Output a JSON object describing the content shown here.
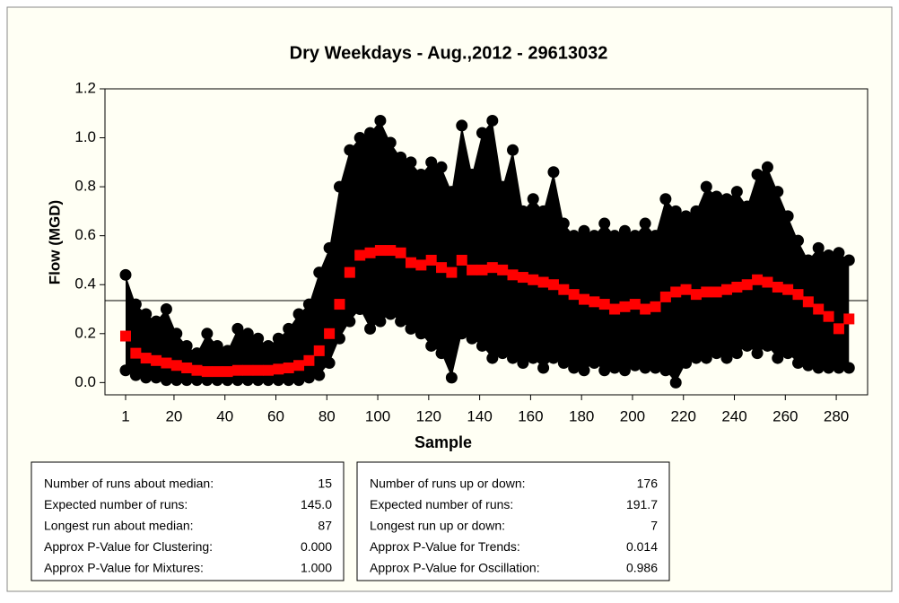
{
  "chart_data": {
    "type": "scatter",
    "title": "Dry Weekdays - Aug.,2012 - 29613032",
    "x_label": "Sample",
    "y_label": "Flow (MGD)",
    "x": [
      1,
      5,
      9,
      13,
      17,
      21,
      25,
      29,
      33,
      37,
      41,
      45,
      49,
      53,
      57,
      61,
      65,
      69,
      73,
      77,
      81,
      85,
      89,
      93,
      97,
      101,
      105,
      109,
      113,
      117,
      121,
      125,
      129,
      133,
      137,
      141,
      145,
      149,
      153,
      157,
      161,
      165,
      169,
      173,
      177,
      181,
      185,
      189,
      193,
      197,
      201,
      205,
      209,
      213,
      217,
      221,
      225,
      229,
      233,
      237,
      241,
      245,
      249,
      253,
      257,
      261,
      265,
      269,
      273,
      277,
      281,
      285
    ],
    "series": [
      {
        "color": "#000000",
        "values": [
          0.44,
          0.32,
          0.28,
          0.25,
          0.3,
          0.2,
          0.15,
          0.12,
          0.2,
          0.15,
          0.13,
          0.22,
          0.2,
          0.18,
          0.15,
          0.18,
          0.22,
          0.28,
          0.32,
          0.45,
          0.55,
          0.8,
          0.95,
          1.0,
          1.02,
          1.07,
          0.98,
          0.92,
          0.9,
          0.85,
          0.9,
          0.88,
          0.78,
          1.05,
          0.85,
          1.02,
          1.07,
          0.8,
          0.95,
          0.7,
          0.75,
          0.7,
          0.86,
          0.65,
          0.6,
          0.62,
          0.6,
          0.65,
          0.6,
          0.62,
          0.6,
          0.65,
          0.6,
          0.75,
          0.7,
          0.68,
          0.7,
          0.8,
          0.76,
          0.75,
          0.78,
          0.72,
          0.85,
          0.88,
          0.78,
          0.68,
          0.58,
          0.5,
          0.55,
          0.52,
          0.53,
          0.5
        ]
      },
      {
        "color": "#000000",
        "values": [
          0.05,
          0.03,
          0.02,
          0.02,
          0.01,
          0.01,
          0.01,
          0.01,
          0.01,
          0.01,
          0.01,
          0.01,
          0.01,
          0.01,
          0.01,
          0.01,
          0.01,
          0.01,
          0.02,
          0.03,
          0.08,
          0.18,
          0.25,
          0.3,
          0.22,
          0.25,
          0.28,
          0.25,
          0.22,
          0.2,
          0.15,
          0.12,
          0.02,
          0.2,
          0.18,
          0.15,
          0.1,
          0.12,
          0.1,
          0.08,
          0.1,
          0.06,
          0.1,
          0.08,
          0.06,
          0.05,
          0.08,
          0.05,
          0.06,
          0.05,
          0.07,
          0.06,
          0.06,
          0.05,
          0.0,
          0.08,
          0.1,
          0.1,
          0.12,
          0.1,
          0.12,
          0.15,
          0.12,
          0.15,
          0.1,
          0.12,
          0.08,
          0.07,
          0.06,
          0.06,
          0.06,
          0.06
        ]
      },
      {
        "color": "#ff0000",
        "values": [
          0.19,
          0.12,
          0.1,
          0.09,
          0.08,
          0.07,
          0.06,
          0.05,
          0.045,
          0.045,
          0.045,
          0.05,
          0.05,
          0.05,
          0.05,
          0.055,
          0.06,
          0.07,
          0.09,
          0.13,
          0.2,
          0.32,
          0.45,
          0.52,
          0.53,
          0.54,
          0.54,
          0.53,
          0.49,
          0.48,
          0.5,
          0.47,
          0.45,
          0.5,
          0.46,
          0.46,
          0.47,
          0.46,
          0.44,
          0.43,
          0.42,
          0.41,
          0.4,
          0.38,
          0.36,
          0.34,
          0.33,
          0.32,
          0.3,
          0.31,
          0.32,
          0.3,
          0.31,
          0.35,
          0.37,
          0.38,
          0.36,
          0.37,
          0.37,
          0.38,
          0.39,
          0.4,
          0.42,
          0.41,
          0.39,
          0.38,
          0.36,
          0.33,
          0.3,
          0.27,
          0.22,
          0.26
        ]
      }
    ],
    "median_line": 0.335,
    "xlim": [
      -7.1,
      292.3
    ],
    "xticks": [
      1,
      20,
      40,
      60,
      80,
      100,
      120,
      140,
      160,
      180,
      200,
      220,
      240,
      260,
      280
    ],
    "ylim": [
      -0.05,
      1.2
    ],
    "yticks": [
      {
        "value": 0,
        "label": "0.0"
      },
      0.2,
      0.4,
      0.6,
      0.8,
      {
        "value": 1,
        "label": "1.0"
      },
      1.2
    ],
    "stats_tables": [
      {
        "rows": [
          [
            "Number of runs about median:",
            "15"
          ],
          [
            "Expected number of runs:",
            "145.0"
          ],
          [
            "Longest run about median:",
            "87"
          ],
          [
            "Approx P-Value for Clustering:",
            "0.000"
          ],
          [
            "Approx P-Value for Mixtures:",
            "1.000"
          ]
        ]
      },
      {
        "rows": [
          [
            "Number of runs up or down:",
            "176"
          ],
          [
            "Expected number of runs:",
            "191.7"
          ],
          [
            "Longest run up or down:",
            "7"
          ],
          [
            "Approx P-Value for Trends:",
            "0.014"
          ],
          [
            "Approx P-Value for Oscillation:",
            "0.986"
          ]
        ]
      }
    ]
  }
}
